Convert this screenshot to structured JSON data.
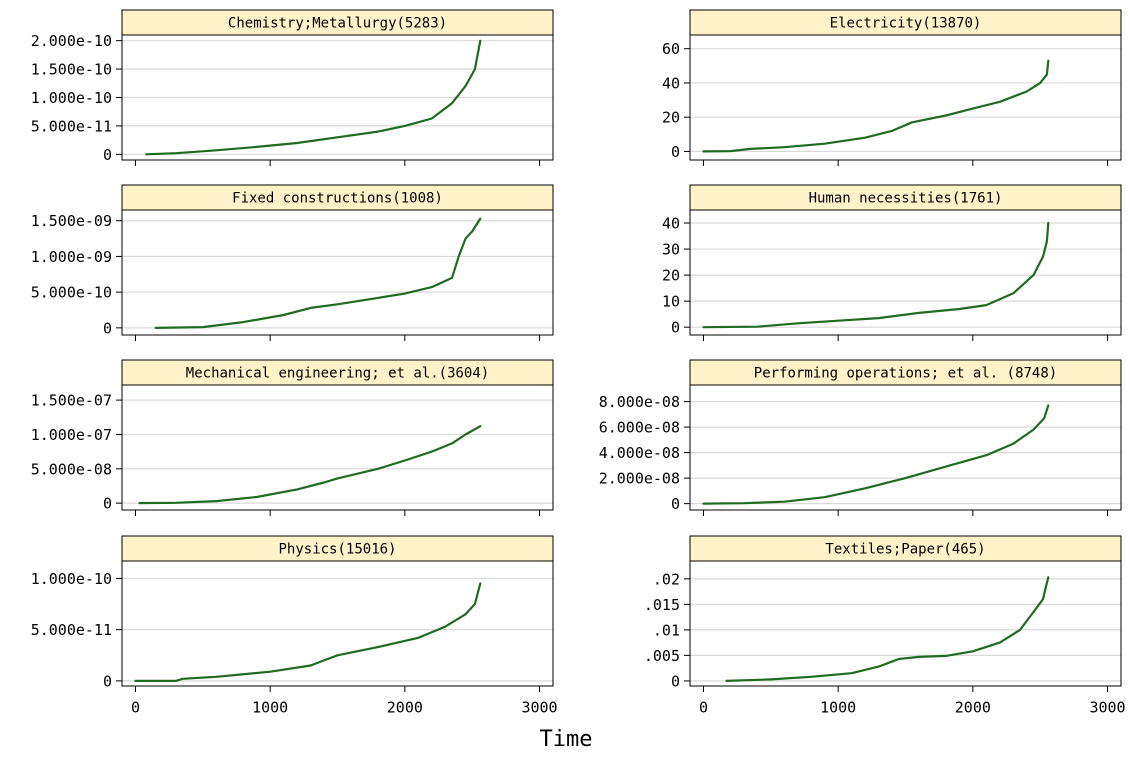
{
  "figure": {
    "xlabel": "Time",
    "xlim": [
      -100,
      3100
    ],
    "xticks": [
      0,
      1000,
      2000,
      3000
    ],
    "xtick_labels": [
      "0",
      "1000",
      "2000",
      "3000"
    ]
  },
  "colors": {
    "line": "#1f6b1f",
    "strip_fill": "#fff2c9",
    "gridline": "#d9d9d9",
    "frame": "#000000",
    "background": "#ffffff"
  },
  "chart_data": [
    {
      "type": "line",
      "title": "Chemistry;Metallurgy(5283)",
      "ylim": [
        -1e-11,
        2.1e-10
      ],
      "yticks": [
        0,
        5e-11,
        1e-10,
        1.5e-10,
        2e-10
      ],
      "ytick_labels": [
        "0",
        "5.000e-11",
        "1.000e-10",
        "1.500e-10",
        "2.000e-10"
      ],
      "x": [
        80,
        300,
        600,
        900,
        1200,
        1500,
        1800,
        2000,
        2200,
        2350,
        2450,
        2520,
        2560
      ],
      "y": [
        0,
        2e-12,
        7e-12,
        1.3e-11,
        2e-11,
        3e-11,
        4e-11,
        5e-11,
        6.3e-11,
        9e-11,
        1.2e-10,
        1.5e-10,
        2e-10
      ]
    },
    {
      "type": "line",
      "title": "Electricity(13870)",
      "ylim": [
        -5,
        68
      ],
      "yticks": [
        0,
        20,
        40,
        60
      ],
      "ytick_labels": [
        "0",
        "20",
        "40",
        "60"
      ],
      "x": [
        0,
        200,
        350,
        600,
        900,
        1200,
        1400,
        1550,
        1800,
        2000,
        2200,
        2400,
        2500,
        2550,
        2560
      ],
      "y": [
        0,
        0.2,
        1.5,
        2.5,
        4.5,
        8,
        12,
        17,
        21,
        25,
        29,
        35,
        40,
        45,
        53
      ]
    },
    {
      "type": "line",
      "title": "Fixed constructions(1008)",
      "ylim": [
        -1e-10,
        1.65e-09
      ],
      "yticks": [
        0,
        5e-10,
        1e-09,
        1.5e-09
      ],
      "ytick_labels": [
        "0",
        "5.000e-10",
        "1.000e-09",
        "1.500e-09"
      ],
      "x": [
        150,
        500,
        800,
        1100,
        1300,
        1500,
        1800,
        2000,
        2200,
        2350,
        2400,
        2450,
        2500,
        2560
      ],
      "y": [
        0,
        1e-11,
        8e-11,
        1.8e-10,
        2.8e-10,
        3.3e-10,
        4.2e-10,
        4.8e-10,
        5.7e-10,
        7e-10,
        1e-09,
        1.25e-09,
        1.35e-09,
        1.53e-09
      ]
    },
    {
      "type": "line",
      "title": "Human necessities(1761)",
      "ylim": [
        -3,
        45
      ],
      "yticks": [
        0,
        10,
        20,
        30,
        40
      ],
      "ytick_labels": [
        "0",
        "10",
        "20",
        "30",
        "40"
      ],
      "x": [
        0,
        400,
        700,
        1000,
        1300,
        1600,
        1900,
        2100,
        2300,
        2450,
        2520,
        2550,
        2560
      ],
      "y": [
        0,
        0.2,
        1.5,
        2.5,
        3.5,
        5.5,
        7,
        8.5,
        13,
        20,
        27,
        33,
        40
      ]
    },
    {
      "type": "line",
      "title": "Mechanical engineering; et al.(3604)",
      "ylim": [
        -1e-08,
        1.72e-07
      ],
      "yticks": [
        0,
        5e-08,
        1e-07,
        1.5e-07
      ],
      "ytick_labels": [
        "0",
        "5.000e-08",
        "1.000e-07",
        "1.500e-07"
      ],
      "x": [
        30,
        300,
        600,
        900,
        1200,
        1400,
        1500,
        1800,
        2000,
        2200,
        2350,
        2450,
        2560
      ],
      "y": [
        0,
        5e-10,
        3e-09,
        9e-09,
        2e-08,
        3e-08,
        3.6e-08,
        5e-08,
        6.2e-08,
        7.5e-08,
        8.7e-08,
        1e-07,
        1.12e-07
      ]
    },
    {
      "type": "line",
      "title": "Performing operations; et al. (8748)",
      "ylim": [
        -5e-09,
        9.3e-08
      ],
      "yticks": [
        0,
        2e-08,
        4e-08,
        6e-08,
        8e-08
      ],
      "ytick_labels": [
        "0",
        "2.000e-08",
        "4.000e-08",
        "6.000e-08",
        "8.000e-08"
      ],
      "x": [
        0,
        300,
        600,
        900,
        1200,
        1500,
        1800,
        2100,
        2300,
        2450,
        2530,
        2560
      ],
      "y": [
        0,
        3e-10,
        1.5e-09,
        5e-09,
        1.2e-08,
        2e-08,
        2.9e-08,
        3.8e-08,
        4.7e-08,
        5.8e-08,
        6.7e-08,
        7.7e-08
      ]
    },
    {
      "type": "line",
      "title": "Physics(15016)",
      "ylim": [
        -5e-12,
        1.17e-10
      ],
      "yticks": [
        0,
        5e-11,
        1e-10
      ],
      "ytick_labels": [
        "0",
        "5.000e-11",
        "1.000e-10"
      ],
      "x": [
        0,
        300,
        350,
        600,
        1000,
        1300,
        1400,
        1500,
        1800,
        2100,
        2300,
        2450,
        2520,
        2560
      ],
      "y": [
        0,
        0,
        2e-12,
        4e-12,
        9e-12,
        1.5e-11,
        2e-11,
        2.5e-11,
        3.3e-11,
        4.2e-11,
        5.3e-11,
        6.5e-11,
        7.5e-11,
        9.5e-11
      ]
    },
    {
      "type": "line",
      "title": "Textiles;Paper(465)",
      "ylim": [
        -0.001,
        0.0235
      ],
      "yticks": [
        0,
        0.005,
        0.01,
        0.015,
        0.02
      ],
      "ytick_labels": [
        "0",
        ".005",
        ".01",
        ".015",
        ".02"
      ],
      "x": [
        170,
        500,
        800,
        1100,
        1300,
        1450,
        1600,
        1800,
        2000,
        2200,
        2350,
        2450,
        2520,
        2560
      ],
      "y": [
        0,
        0.0003,
        0.0008,
        0.0015,
        0.0028,
        0.0043,
        0.0047,
        0.0049,
        0.0058,
        0.0075,
        0.01,
        0.0135,
        0.016,
        0.0203
      ]
    }
  ]
}
